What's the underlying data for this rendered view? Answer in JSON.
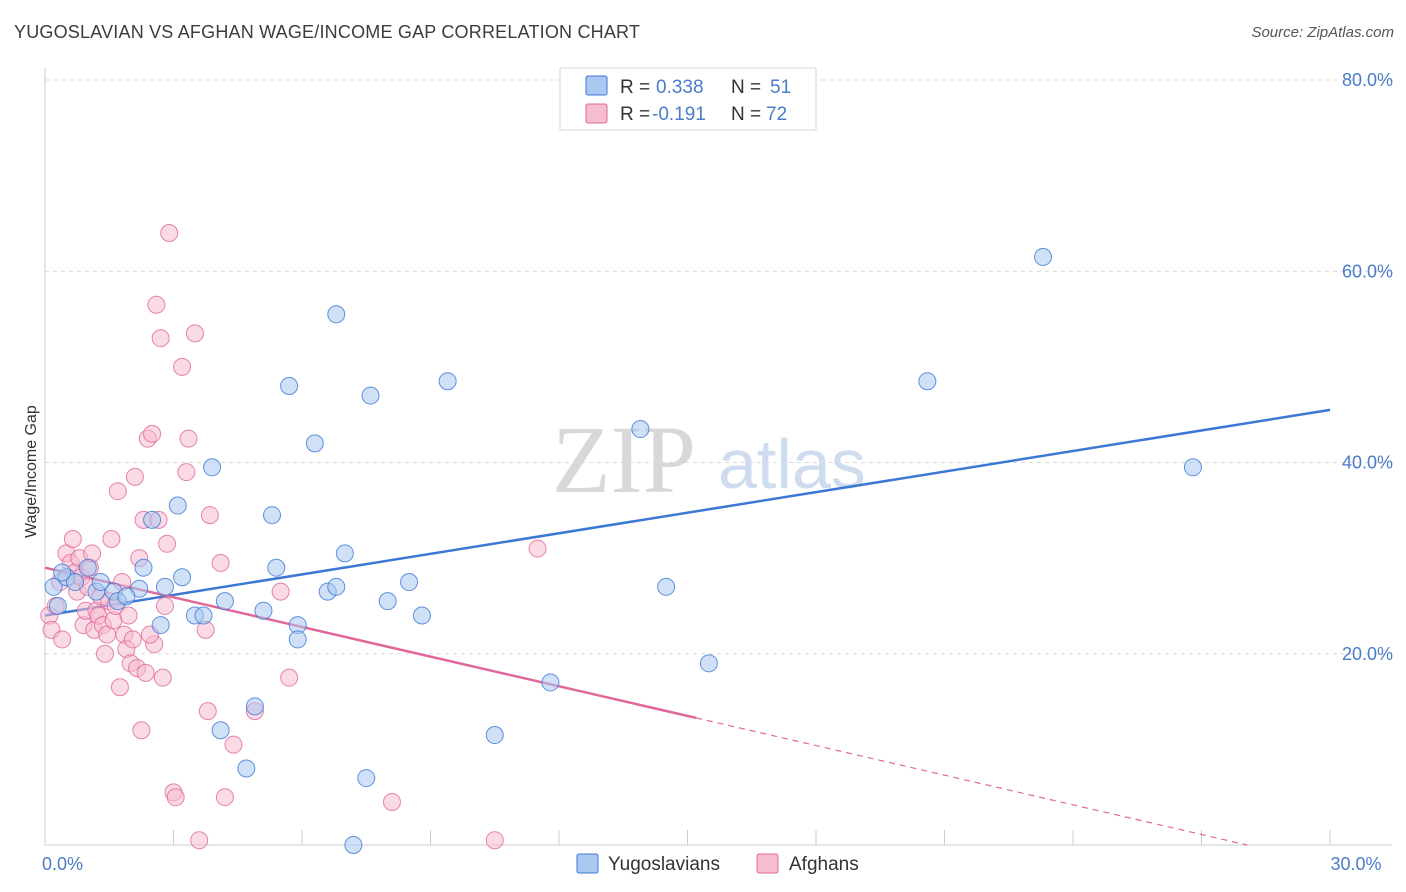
{
  "title": "YUGOSLAVIAN VS AFGHAN WAGE/INCOME GAP CORRELATION CHART",
  "source": "Source: ZipAtlas.com",
  "watermark": {
    "zip": "ZIP",
    "atlas": "atlas"
  },
  "colors": {
    "blue": "#3b78d4",
    "blue_fill": "#aac8f0",
    "pink": "#e0679a",
    "pink_fill": "#f6bcd0",
    "grid": "#d9d9d9",
    "axis_text": "#4a7cc9"
  },
  "legend": {
    "rows": [
      {
        "r_label": "R =",
        "r_value": "0.338",
        "n_label": "N =",
        "n_value": "51"
      },
      {
        "r_label": "R =",
        "r_value": "-0.191",
        "n_label": "N =",
        "n_value": "72"
      }
    ]
  },
  "chart_data": {
    "type": "scatter",
    "title": "YUGOSLAVIAN VS AFGHAN WAGE/INCOME GAP CORRELATION CHART",
    "xlabel": "",
    "ylabel": "Wage/Income Gap",
    "xlim": [
      0,
      30
    ],
    "ylim": [
      0,
      80
    ],
    "x_tick_labels": [
      {
        "value": 0,
        "label": "0.0%"
      },
      {
        "value": 30,
        "label": "30.0%"
      }
    ],
    "y_tick_labels": [
      {
        "value": 80,
        "label": "80.0%"
      },
      {
        "value": 60,
        "label": "60.0%"
      },
      {
        "value": 40,
        "label": "40.0%"
      },
      {
        "value": 20,
        "label": "20.0%"
      }
    ],
    "legend_placement": "top-center",
    "series": [
      {
        "name": "Yugoslavians",
        "color": "#3b78d4",
        "fill": "#aac8f0",
        "r": 0.338,
        "n": 51,
        "trend": {
          "x": [
            0,
            30
          ],
          "y": [
            24.0,
            45.5
          ],
          "solid_until": 30
        },
        "points": [
          [
            0.2,
            27.0
          ],
          [
            0.3,
            25.0
          ],
          [
            0.5,
            28.0
          ],
          [
            0.7,
            27.5
          ],
          [
            1.0,
            29.0
          ],
          [
            1.2,
            26.5
          ],
          [
            1.6,
            26.5
          ],
          [
            1.7,
            25.5
          ],
          [
            2.2,
            26.8
          ],
          [
            2.3,
            29.0
          ],
          [
            2.5,
            34.0
          ],
          [
            2.7,
            23.0
          ],
          [
            2.8,
            27.0
          ],
          [
            3.1,
            35.5
          ],
          [
            3.2,
            28.0
          ],
          [
            3.5,
            24.0
          ],
          [
            3.7,
            24.0
          ],
          [
            3.9,
            39.5
          ],
          [
            4.1,
            12.0
          ],
          [
            4.2,
            25.5
          ],
          [
            4.7,
            8.0
          ],
          [
            4.9,
            14.5
          ],
          [
            5.1,
            24.5
          ],
          [
            5.3,
            34.5
          ],
          [
            5.4,
            29.0
          ],
          [
            5.7,
            48.0
          ],
          [
            5.9,
            23.0
          ],
          [
            5.9,
            21.5
          ],
          [
            6.3,
            42.0
          ],
          [
            6.6,
            26.5
          ],
          [
            6.8,
            27.0
          ],
          [
            6.8,
            55.5
          ],
          [
            7.0,
            30.5
          ],
          [
            7.2,
            0.0
          ],
          [
            7.5,
            7.0
          ],
          [
            7.6,
            47.0
          ],
          [
            8.0,
            25.5
          ],
          [
            8.5,
            27.5
          ],
          [
            8.8,
            24.0
          ],
          [
            9.4,
            48.5
          ],
          [
            10.5,
            11.5
          ],
          [
            11.8,
            17.0
          ],
          [
            13.9,
            43.5
          ],
          [
            14.5,
            27.0
          ],
          [
            15.5,
            19.0
          ],
          [
            20.6,
            48.5
          ],
          [
            23.3,
            61.5
          ],
          [
            26.8,
            39.5
          ],
          [
            1.3,
            27.5
          ],
          [
            0.4,
            28.5
          ],
          [
            1.9,
            26.0
          ]
        ]
      },
      {
        "name": "Afghans",
        "color": "#e0679a",
        "fill": "#f6bcd0",
        "r": -0.191,
        "n": 72,
        "trend": {
          "x": [
            0,
            30
          ],
          "y": [
            29.0,
            -2.0
          ],
          "solid_until": 15.2
        },
        "points": [
          [
            0.1,
            24.0
          ],
          [
            0.15,
            22.5
          ],
          [
            0.25,
            25.0
          ],
          [
            0.35,
            27.5
          ],
          [
            0.4,
            21.5
          ],
          [
            0.5,
            30.5
          ],
          [
            0.6,
            29.5
          ],
          [
            0.65,
            32.0
          ],
          [
            0.7,
            28.5
          ],
          [
            0.75,
            26.5
          ],
          [
            0.8,
            30.0
          ],
          [
            0.85,
            28.0
          ],
          [
            0.9,
            23.0
          ],
          [
            0.95,
            24.5
          ],
          [
            1.0,
            27.0
          ],
          [
            1.05,
            29.0
          ],
          [
            1.1,
            30.5
          ],
          [
            1.15,
            22.5
          ],
          [
            1.2,
            24.5
          ],
          [
            1.25,
            24.0
          ],
          [
            1.3,
            26.0
          ],
          [
            1.35,
            23.0
          ],
          [
            1.4,
            20.0
          ],
          [
            1.45,
            22.0
          ],
          [
            1.5,
            25.5
          ],
          [
            1.55,
            32.0
          ],
          [
            1.6,
            23.5
          ],
          [
            1.65,
            25.0
          ],
          [
            1.7,
            37.0
          ],
          [
            1.75,
            16.5
          ],
          [
            1.8,
            27.5
          ],
          [
            1.85,
            22.0
          ],
          [
            1.9,
            20.5
          ],
          [
            1.95,
            24.0
          ],
          [
            2.0,
            19.0
          ],
          [
            2.05,
            21.5
          ],
          [
            2.1,
            38.5
          ],
          [
            2.15,
            18.5
          ],
          [
            2.2,
            30.0
          ],
          [
            2.25,
            12.0
          ],
          [
            2.3,
            34.0
          ],
          [
            2.35,
            18.0
          ],
          [
            2.4,
            42.5
          ],
          [
            2.5,
            43.0
          ],
          [
            2.55,
            21.0
          ],
          [
            2.6,
            56.5
          ],
          [
            2.65,
            34.0
          ],
          [
            2.7,
            53.0
          ],
          [
            2.75,
            17.5
          ],
          [
            2.8,
            25.0
          ],
          [
            2.85,
            31.5
          ],
          [
            2.9,
            64.0
          ],
          [
            3.0,
            5.5
          ],
          [
            3.05,
            5.0
          ],
          [
            3.2,
            50.0
          ],
          [
            3.3,
            39.0
          ],
          [
            3.35,
            42.5
          ],
          [
            3.5,
            53.5
          ],
          [
            3.6,
            0.5
          ],
          [
            3.75,
            22.5
          ],
          [
            3.8,
            14.0
          ],
          [
            3.85,
            34.5
          ],
          [
            4.1,
            29.5
          ],
          [
            4.2,
            5.0
          ],
          [
            4.4,
            10.5
          ],
          [
            4.9,
            14.0
          ],
          [
            5.5,
            26.5
          ],
          [
            5.7,
            17.5
          ],
          [
            8.1,
            4.5
          ],
          [
            10.5,
            0.5
          ],
          [
            11.5,
            31.0
          ],
          [
            2.45,
            22.0
          ]
        ]
      }
    ]
  },
  "bottom_legend": [
    {
      "label": "Yugoslavians"
    },
    {
      "label": "Afghans"
    }
  ]
}
